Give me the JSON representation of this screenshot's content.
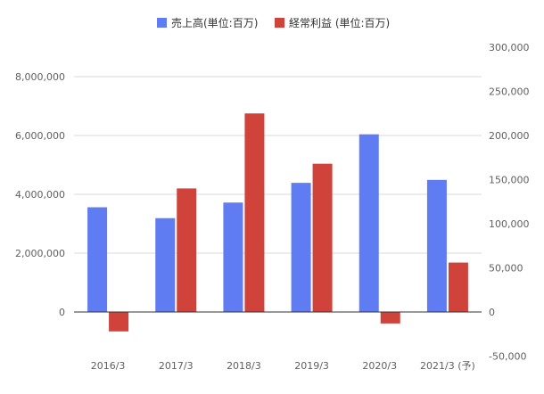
{
  "chart_data": {
    "type": "bar",
    "categories": [
      "2016/3",
      "2017/3",
      "2018/3",
      "2019/3",
      "2020/3",
      "2021/3 (予)"
    ],
    "series": [
      {
        "name": "売上高(単位:百万)",
        "axis": "left",
        "color": "#5f7cf2",
        "values": [
          3560000,
          3190000,
          3720000,
          4390000,
          6040000,
          4490000
        ]
      },
      {
        "name": "経常利益 (単位:百万)",
        "axis": "right",
        "color": "#d0433b",
        "values": [
          -22000,
          140000,
          225000,
          168000,
          -13000,
          56000
        ]
      }
    ],
    "left_axis": {
      "ylim": [
        -1000000,
        8500000
      ],
      "ticks": [
        0,
        2000000,
        4000000,
        6000000,
        8000000
      ],
      "tick_labels": [
        "0",
        "2,000,000",
        "4,000,000",
        "6,000,000",
        "8,000,000"
      ]
    },
    "right_axis": {
      "ylim": [
        -50000,
        300000
      ],
      "ticks": [
        -50000,
        0,
        50000,
        100000,
        150000,
        200000,
        250000,
        300000
      ],
      "tick_labels": [
        "-50,000",
        "0",
        "50,000",
        "100,000",
        "150,000",
        "200,000",
        "250,000",
        "300,000"
      ]
    },
    "legend_position": "top-center",
    "grid": true,
    "title": "",
    "xlabel": "",
    "ylabel": ""
  }
}
